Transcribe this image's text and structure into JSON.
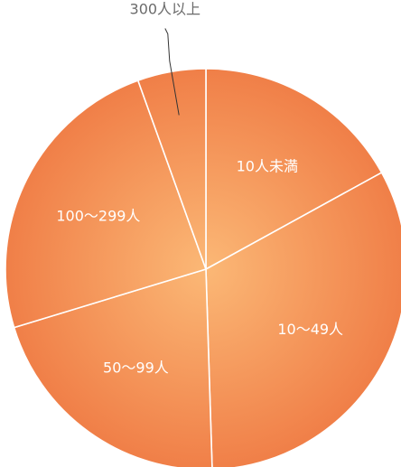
{
  "chart_data": {
    "type": "pie",
    "categories": [
      "10人未満",
      "10〜49人",
      "50〜99人",
      "100〜299人",
      "300人以上"
    ],
    "values": [
      17.0,
      32.5,
      20.8,
      24.2,
      5.5
    ],
    "unit": "%",
    "start_angle_deg": 0,
    "direction": "clockwise",
    "outside_labels": [
      "300人以上"
    ],
    "colors": {
      "center": "#fbb876",
      "edge": "#f07e47",
      "divider": "#ffffff",
      "label_inside": "#ffffff",
      "label_outside": "#6b6b6b",
      "leader_line": "#333333"
    }
  }
}
